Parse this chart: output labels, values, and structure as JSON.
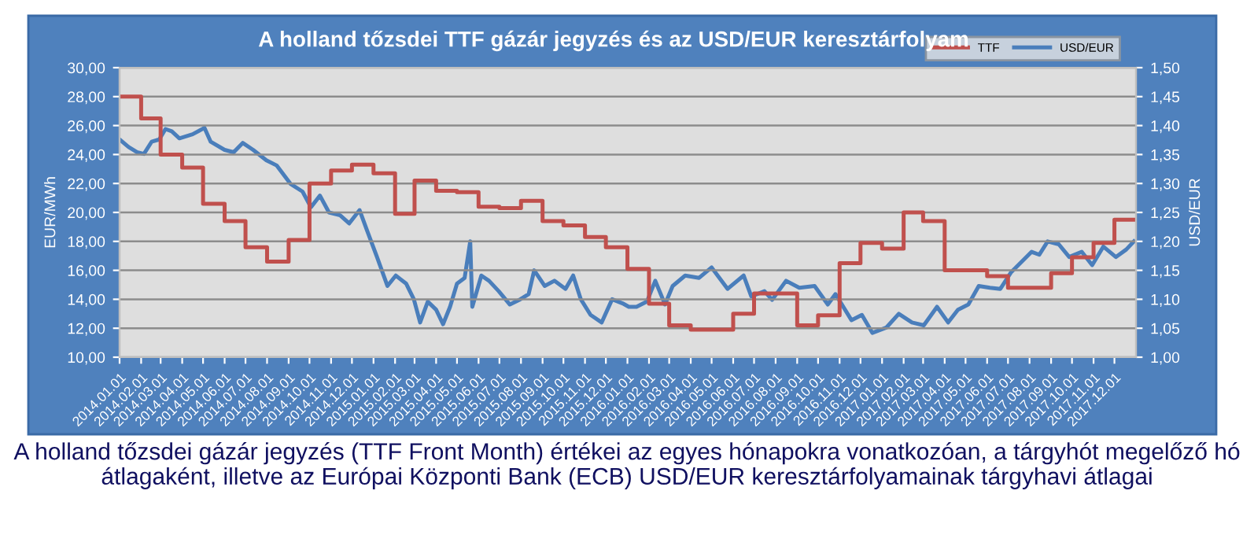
{
  "chart_data": {
    "type": "line",
    "title": "A holland tőzsdei TTF gázár jegyzés és az USD/EUR keresztárfolyam",
    "ylabel": "EUR/MWh",
    "y2label": "USD/EUR",
    "annotations": [
      "A holland tőzsdei gázár jegyzés (TTF Front Month) értékei az egyes hónapokra vonatkozóan, a tárgyhót megelőző hó átlagaként, illetve az Európai Központi Bank (ECB) USD/EUR keresztárfolyamainak tárgyhavi átlagai"
    ],
    "xlim": [
      "2014-01-01",
      "2018-01-01"
    ],
    "xticks": [
      {
        "value": "2014-01-01",
        "label": "2014.01.01"
      },
      {
        "value": "2014-02-01",
        "label": "2014.02.01"
      },
      {
        "value": "2014-03-01",
        "label": "2014.03.01"
      },
      {
        "value": "2014-04-01",
        "label": "2014.04.01"
      },
      {
        "value": "2014-05-01",
        "label": "2014.05.01"
      },
      {
        "value": "2014-06-01",
        "label": "2014.06.01"
      },
      {
        "value": "2014-07-01",
        "label": "2014.07.01"
      },
      {
        "value": "2014-08-01",
        "label": "2014.08.01"
      },
      {
        "value": "2014-09-01",
        "label": "2014.09.01"
      },
      {
        "value": "2014-10-01",
        "label": "2014.10.01"
      },
      {
        "value": "2014-11-01",
        "label": "2014.11.01"
      },
      {
        "value": "2014-12-01",
        "label": "2014.12.01"
      },
      {
        "value": "2015-01-01",
        "label": "2015.01.01"
      },
      {
        "value": "2015-02-01",
        "label": "2015.02.01"
      },
      {
        "value": "2015-03-01",
        "label": "2015.03.01"
      },
      {
        "value": "2015-04-01",
        "label": "2015.04.01"
      },
      {
        "value": "2015-05-01",
        "label": "2015.05.01"
      },
      {
        "value": "2015-06-01",
        "label": "2015.06.01"
      },
      {
        "value": "2015-07-01",
        "label": "2015.07.01"
      },
      {
        "value": "2015-08-01",
        "label": "2015.08.01"
      },
      {
        "value": "2015-09-01",
        "label": "2015.09.01"
      },
      {
        "value": "2015-10-01",
        "label": "2015.10.01"
      },
      {
        "value": "2015-11-01",
        "label": "2015.11.01"
      },
      {
        "value": "2015-12-01",
        "label": "2015.12.01"
      },
      {
        "value": "2016-01-01",
        "label": "2016.01.01"
      },
      {
        "value": "2016-02-01",
        "label": "2016.02.01"
      },
      {
        "value": "2016-03-01",
        "label": "2016.03.01"
      },
      {
        "value": "2016-04-01",
        "label": "2016.04.01"
      },
      {
        "value": "2016-05-01",
        "label": "2016.05.01"
      },
      {
        "value": "2016-06-01",
        "label": "2016.06.01"
      },
      {
        "value": "2016-07-01",
        "label": "2016.07.01"
      },
      {
        "value": "2016-08-01",
        "label": "2016.08.01"
      },
      {
        "value": "2016-09-01",
        "label": "2016.09.01"
      },
      {
        "value": "2016-10-01",
        "label": "2016.10.01"
      },
      {
        "value": "2016-11-01",
        "label": "2016.11.01"
      },
      {
        "value": "2016-12-01",
        "label": "2016.12.01"
      },
      {
        "value": "2017-01-01",
        "label": "2017.01.01"
      },
      {
        "value": "2017-02-01",
        "label": "2017.02.01"
      },
      {
        "value": "2017-03-01",
        "label": "2017.03.01"
      },
      {
        "value": "2017-04-01",
        "label": "2017.04.01"
      },
      {
        "value": "2017-05-01",
        "label": "2017.05.01"
      },
      {
        "value": "2017-06-01",
        "label": "2017.06.01"
      },
      {
        "value": "2017-07-01",
        "label": "2017.07.01"
      },
      {
        "value": "2017-08-01",
        "label": "2017.08.01"
      },
      {
        "value": "2017-09-01",
        "label": "2017.09.01"
      },
      {
        "value": "2017-10-01",
        "label": "2017.10.01"
      },
      {
        "value": "2017-11-01",
        "label": "2017.11.01"
      },
      {
        "value": "2017-12-01",
        "label": "2017.12.01"
      }
    ],
    "ylim": [
      10,
      30
    ],
    "yticks": [
      {
        "value": 10,
        "label": "10,00"
      },
      {
        "value": 12,
        "label": "12,00"
      },
      {
        "value": 14,
        "label": "14,00"
      },
      {
        "value": 16,
        "label": "16,00"
      },
      {
        "value": 18,
        "label": "18,00"
      },
      {
        "value": 20,
        "label": "20,00"
      },
      {
        "value": 22,
        "label": "22,00"
      },
      {
        "value": 24,
        "label": "24,00"
      },
      {
        "value": 26,
        "label": "26,00"
      },
      {
        "value": 28,
        "label": "28,00"
      },
      {
        "value": 30,
        "label": "30,00"
      }
    ],
    "y2lim": [
      1.0,
      1.5
    ],
    "y2ticks": [
      {
        "value": 1.0,
        "label": "1,00"
      },
      {
        "value": 1.05,
        "label": "1,05"
      },
      {
        "value": 1.1,
        "label": "1,10"
      },
      {
        "value": 1.15,
        "label": "1,15"
      },
      {
        "value": 1.2,
        "label": "1,20"
      },
      {
        "value": 1.25,
        "label": "1,25"
      },
      {
        "value": 1.3,
        "label": "1,30"
      },
      {
        "value": 1.35,
        "label": "1,35"
      },
      {
        "value": 1.4,
        "label": "1,40"
      },
      {
        "value": 1.45,
        "label": "1,45"
      },
      {
        "value": 1.5,
        "label": "1,50"
      }
    ],
    "grid": "y",
    "legend": "top right",
    "series": [
      {
        "name": "TTF",
        "type": "step",
        "color": "#c0504d",
        "x": [
          "2014-01-01",
          "2014-02-01",
          "2014-03-01",
          "2014-04-01",
          "2014-05-01",
          "2014-06-01",
          "2014-07-01",
          "2014-08-01",
          "2014-09-01",
          "2014-10-01",
          "2014-11-01",
          "2014-12-01",
          "2015-01-01",
          "2015-02-01",
          "2015-03-01",
          "2015-04-01",
          "2015-05-01",
          "2015-06-01",
          "2015-07-01",
          "2015-08-01",
          "2015-09-01",
          "2015-10-01",
          "2015-11-01",
          "2015-12-01",
          "2016-01-01",
          "2016-02-01",
          "2016-03-01",
          "2016-04-01",
          "2016-05-01",
          "2016-06-01",
          "2016-07-01",
          "2016-08-01",
          "2016-09-01",
          "2016-10-01",
          "2016-11-01",
          "2016-12-01",
          "2017-01-01",
          "2017-02-01",
          "2017-03-01",
          "2017-04-01",
          "2017-05-01",
          "2017-06-01",
          "2017-07-01",
          "2017-08-01",
          "2017-09-01",
          "2017-10-01",
          "2017-11-01",
          "2017-12-01",
          "2018-01-01"
        ],
        "values": [
          28.0,
          26.5,
          24.0,
          23.1,
          20.6,
          19.4,
          17.6,
          16.6,
          18.1,
          22.0,
          22.9,
          23.3,
          22.7,
          19.9,
          22.2,
          21.5,
          21.4,
          20.4,
          20.3,
          20.8,
          19.4,
          19.1,
          18.3,
          17.6,
          16.1,
          13.7,
          12.2,
          11.9,
          11.9,
          13.0,
          14.4,
          14.4,
          12.2,
          12.9,
          16.5,
          17.9,
          17.5,
          20.0,
          19.4,
          16.0,
          16.0,
          15.6,
          14.8,
          14.8,
          15.8,
          16.9,
          17.9,
          19.5,
          19.5
        ]
      },
      {
        "name": "USD/EUR",
        "axis": "y2",
        "color": "#4a7ebb",
        "x": [
          "2014-01-01",
          "2014-01-14",
          "2014-01-26",
          "2014-02-05",
          "2014-02-16",
          "2014-02-27",
          "2014-03-08",
          "2014-03-17",
          "2014-03-28",
          "2014-04-16",
          "2014-05-03",
          "2014-05-12",
          "2014-06-01",
          "2014-06-14",
          "2014-06-27",
          "2014-07-12",
          "2014-07-31",
          "2014-08-15",
          "2014-09-04",
          "2014-09-21",
          "2014-10-03",
          "2014-10-16",
          "2014-10-29",
          "2014-11-14",
          "2014-11-27",
          "2014-12-12",
          "2014-12-23",
          "2015-01-06",
          "2015-01-21",
          "2015-02-02",
          "2015-02-17",
          "2015-02-28",
          "2015-03-09",
          "2015-03-20",
          "2015-04-01",
          "2015-04-11",
          "2015-04-21",
          "2015-05-01",
          "2015-05-12",
          "2015-05-20",
          "2015-05-23",
          "2015-06-05",
          "2015-06-16",
          "2015-06-30",
          "2015-07-16",
          "2015-07-31",
          "2015-08-12",
          "2015-08-20",
          "2015-09-04",
          "2015-09-18",
          "2015-10-04",
          "2015-10-15",
          "2015-10-26",
          "2015-11-09",
          "2015-11-25",
          "2015-12-10",
          "2015-12-25",
          "2016-01-03",
          "2016-01-14",
          "2016-01-29",
          "2016-02-10",
          "2016-02-24",
          "2016-03-06",
          "2016-03-24",
          "2016-04-13",
          "2016-05-01",
          "2016-05-24",
          "2016-06-16",
          "2016-06-27",
          "2016-07-16",
          "2016-07-27",
          "2016-08-16",
          "2016-09-04",
          "2016-09-26",
          "2016-10-15",
          "2016-10-26",
          "2016-11-18",
          "2016-12-03",
          "2016-12-18",
          "2017-01-07",
          "2017-01-25",
          "2017-02-13",
          "2017-03-02",
          "2017-03-21",
          "2017-04-06",
          "2017-04-20",
          "2017-05-05",
          "2017-05-20",
          "2017-06-05",
          "2017-06-20",
          "2017-07-05",
          "2017-07-20",
          "2017-08-04",
          "2017-08-15",
          "2017-08-27",
          "2017-09-12",
          "2017-09-27",
          "2017-10-15",
          "2017-10-30",
          "2017-11-15",
          "2017-12-03",
          "2017-12-18",
          "2017-12-29"
        ],
        "values": [
          1.376,
          1.363,
          1.354,
          1.351,
          1.372,
          1.376,
          1.394,
          1.39,
          1.378,
          1.385,
          1.396,
          1.372,
          1.358,
          1.354,
          1.37,
          1.358,
          1.34,
          1.331,
          1.299,
          1.286,
          1.259,
          1.279,
          1.25,
          1.245,
          1.231,
          1.254,
          1.218,
          1.173,
          1.123,
          1.141,
          1.127,
          1.1,
          1.06,
          1.096,
          1.082,
          1.057,
          1.087,
          1.127,
          1.137,
          1.2,
          1.087,
          1.141,
          1.132,
          1.114,
          1.091,
          1.1,
          1.109,
          1.15,
          1.123,
          1.132,
          1.118,
          1.141,
          1.1,
          1.073,
          1.06,
          1.1,
          1.093,
          1.087,
          1.087,
          1.096,
          1.132,
          1.091,
          1.123,
          1.141,
          1.137,
          1.155,
          1.118,
          1.141,
          1.105,
          1.114,
          1.099,
          1.132,
          1.12,
          1.123,
          1.091,
          1.109,
          1.064,
          1.073,
          1.042,
          1.051,
          1.075,
          1.06,
          1.055,
          1.087,
          1.06,
          1.082,
          1.091,
          1.123,
          1.12,
          1.118,
          1.146,
          1.164,
          1.182,
          1.177,
          1.2,
          1.195,
          1.173,
          1.182,
          1.159,
          1.191,
          1.173,
          1.186,
          1.2
        ]
      }
    ]
  }
}
